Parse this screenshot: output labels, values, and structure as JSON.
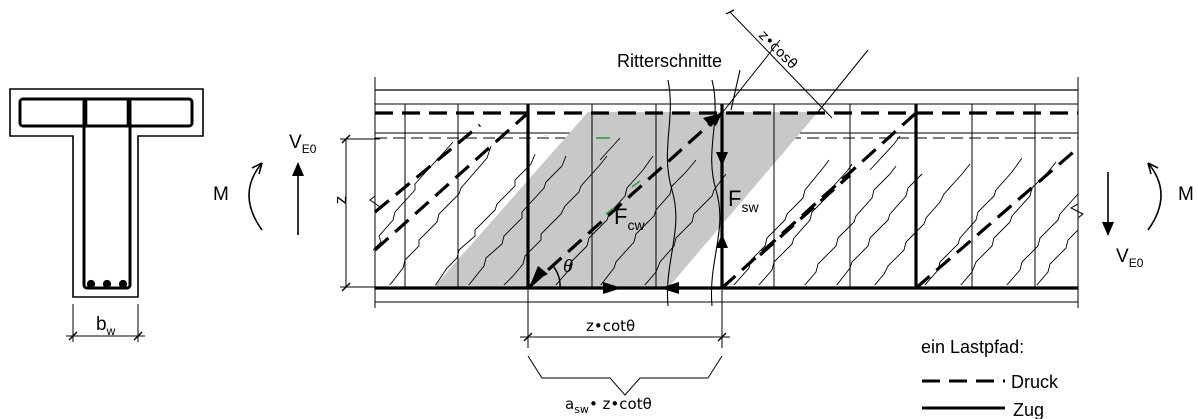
{
  "labels": {
    "ritterschnitte": "Ritterschnitte",
    "z_cos_theta": "z•cosθ",
    "v_e0_left": {
      "main": "V",
      "sub": "E0"
    },
    "v_e0_right": {
      "main": "V",
      "sub": "E0"
    },
    "moment_left": "M",
    "moment_right": "M",
    "lever_arm": "z",
    "theta": "θ",
    "f_cw": {
      "main": "F",
      "sub": "cw"
    },
    "f_sw": {
      "main": "F",
      "sub": "sw"
    },
    "b_w": {
      "main": "b",
      "sub": "w"
    },
    "z_cot_theta": "z•cotθ",
    "asw_z_cot_theta": {
      "main": "a",
      "sub": "sw",
      "rest": "• z•cotθ"
    }
  },
  "legend": {
    "title": "ein Lastpfad:",
    "items": [
      {
        "style": "dashed",
        "label": "Druck"
      },
      {
        "style": "solid",
        "label": "Zug"
      }
    ]
  },
  "colors": {
    "ink": "#000000",
    "shade": "#c8c8c8",
    "accent_green": "#2e9e3e"
  }
}
